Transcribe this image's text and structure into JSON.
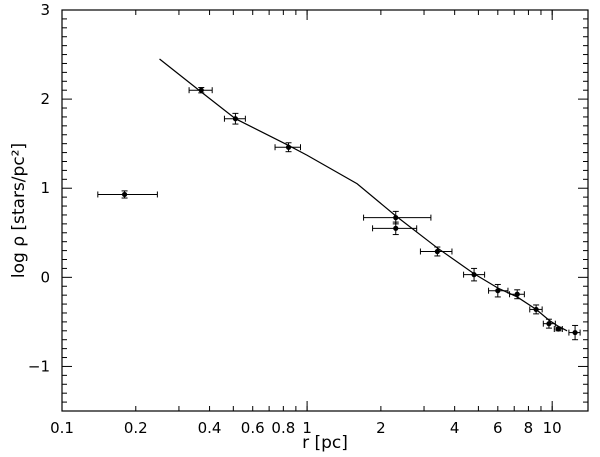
{
  "chart_data": {
    "type": "scatter",
    "x_scale": "log",
    "y_scale": "linear",
    "xlim": [
      0.1,
      14
    ],
    "ylim": [
      -1.5,
      3
    ],
    "xlabel": "r [pc]",
    "ylabel": "log ρ   [stars/pc²]",
    "x_ticks": [
      {
        "value": 0.1,
        "label": "0.1"
      },
      {
        "value": 0.2,
        "label": "0.2"
      },
      {
        "value": 0.4,
        "label": "0.4"
      },
      {
        "value": 0.6,
        "label": "0.6"
      },
      {
        "value": 0.8,
        "label": "0.8"
      },
      {
        "value": 1,
        "label": "1"
      },
      {
        "value": 2,
        "label": "2"
      },
      {
        "value": 4,
        "label": "4"
      },
      {
        "value": 6,
        "label": "6"
      },
      {
        "value": 8,
        "label": "8"
      },
      {
        "value": 10,
        "label": "10"
      }
    ],
    "y_ticks": [
      {
        "value": -1,
        "label": "−1"
      },
      {
        "value": 0,
        "label": "0"
      },
      {
        "value": 1,
        "label": "1"
      },
      {
        "value": 2,
        "label": "2"
      },
      {
        "value": 3,
        "label": "3"
      }
    ],
    "points": [
      {
        "x": 0.18,
        "y": 0.93,
        "xerr": [
          0.14,
          0.245
        ],
        "yerr": 0.04
      },
      {
        "x": 0.37,
        "y": 2.1,
        "xerr": [
          0.33,
          0.41
        ],
        "yerr": 0.03
      },
      {
        "x": 0.51,
        "y": 1.78,
        "xerr": [
          0.46,
          0.56
        ],
        "yerr": 0.06
      },
      {
        "x": 0.84,
        "y": 1.46,
        "xerr": [
          0.74,
          0.94
        ],
        "yerr": 0.05
      },
      {
        "x": 2.3,
        "y": 0.67,
        "xerr": [
          1.7,
          3.2
        ],
        "yerr": 0.07
      },
      {
        "x": 2.3,
        "y": 0.55,
        "xerr": [
          1.85,
          2.8
        ],
        "yerr": 0.07
      },
      {
        "x": 3.4,
        "y": 0.29,
        "xerr": [
          2.9,
          3.9
        ],
        "yerr": 0.05
      },
      {
        "x": 4.8,
        "y": 0.03,
        "xerr": [
          4.35,
          5.3
        ],
        "yerr": 0.07
      },
      {
        "x": 6.0,
        "y": -0.15,
        "xerr": [
          5.5,
          6.6
        ],
        "yerr": 0.07
      },
      {
        "x": 7.2,
        "y": -0.19,
        "xerr": [
          6.7,
          7.7
        ],
        "yerr": 0.05
      },
      {
        "x": 8.6,
        "y": -0.36,
        "xerr": [
          8.1,
          9.1
        ],
        "yerr": 0.05
      },
      {
        "x": 9.7,
        "y": -0.52,
        "xerr": [
          9.2,
          10.3
        ],
        "yerr": 0.05
      },
      {
        "x": 10.6,
        "y": -0.58,
        "xerr": [
          10.2,
          11.0
        ],
        "yerr": 0.02
      },
      {
        "x": 12.4,
        "y": -0.62,
        "xerr": [
          11.7,
          13.0
        ],
        "yerr": 0.08
      }
    ],
    "fit_line": [
      {
        "x": 0.25,
        "y": 2.45
      },
      {
        "x": 0.37,
        "y": 2.08
      },
      {
        "x": 0.51,
        "y": 1.78
      },
      {
        "x": 0.84,
        "y": 1.48
      },
      {
        "x": 1.0,
        "y": 1.37
      },
      {
        "x": 1.6,
        "y": 1.05
      },
      {
        "x": 2.3,
        "y": 0.69
      },
      {
        "x": 3.4,
        "y": 0.33
      },
      {
        "x": 4.8,
        "y": 0.04
      },
      {
        "x": 6.0,
        "y": -0.12
      },
      {
        "x": 7.2,
        "y": -0.22
      },
      {
        "x": 8.6,
        "y": -0.36
      },
      {
        "x": 9.7,
        "y": -0.48
      },
      {
        "x": 10.6,
        "y": -0.55
      },
      {
        "x": 11.5,
        "y": -0.6
      }
    ]
  }
}
